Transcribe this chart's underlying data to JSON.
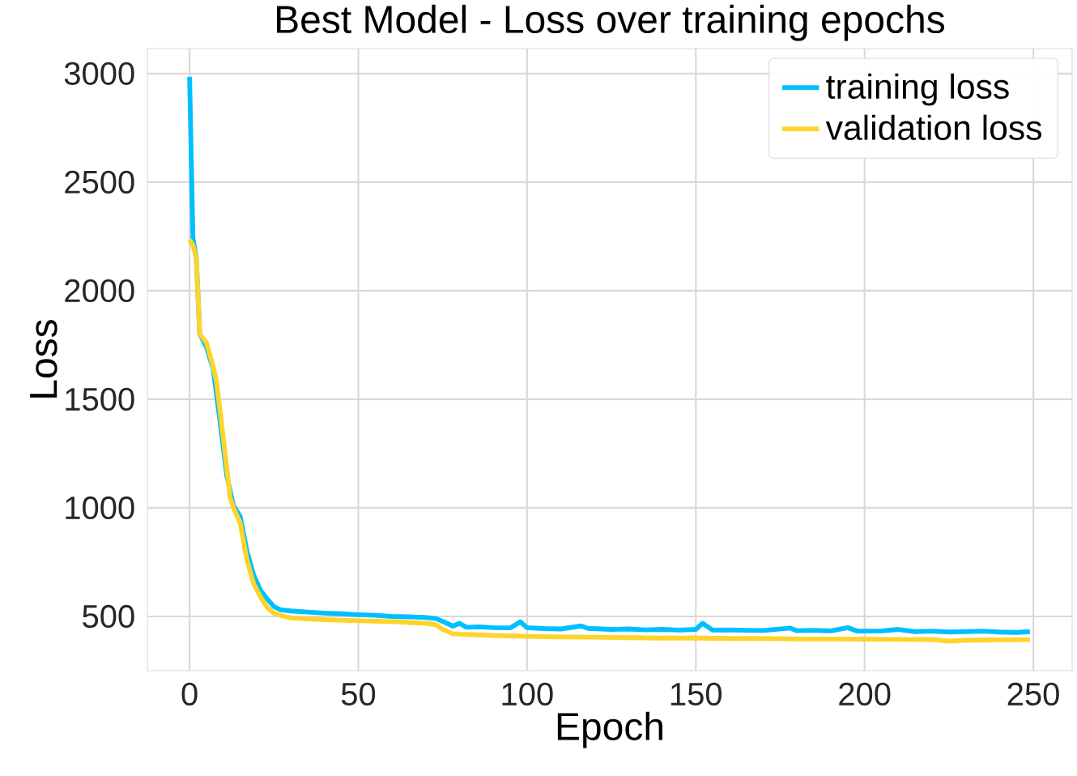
{
  "chart_data": {
    "type": "line",
    "title": "Best Model - Loss over training epochs",
    "xlabel": "Epoch",
    "ylabel": "Loss",
    "xlim": [
      -12.5,
      261.5
    ],
    "ylim": [
      250,
      3115
    ],
    "xticks": [
      0,
      50,
      100,
      150,
      200,
      250
    ],
    "yticks": [
      500,
      1000,
      1500,
      2000,
      2500,
      3000
    ],
    "grid": true,
    "legend": "top right",
    "line_style": "solid",
    "marker": "none",
    "series": [
      {
        "name": "training loss",
        "color": "#00bfff",
        "x": [
          0,
          1,
          2,
          3,
          5,
          7,
          9,
          11,
          13,
          15,
          17,
          19,
          21,
          23,
          25,
          27,
          30,
          35,
          40,
          45,
          50,
          55,
          60,
          65,
          70,
          73,
          76,
          78,
          80,
          82,
          86,
          90,
          95,
          98,
          100,
          105,
          110,
          116,
          118,
          125,
          130,
          135,
          140,
          145,
          150,
          152,
          155,
          160,
          165,
          170,
          178,
          180,
          185,
          190,
          195,
          198,
          205,
          210,
          215,
          220,
          225,
          230,
          235,
          240,
          245,
          249
        ],
        "values": [
          2985,
          2240,
          2150,
          1800,
          1740,
          1640,
          1400,
          1150,
          1010,
          960,
          800,
          690,
          620,
          580,
          545,
          530,
          525,
          520,
          515,
          512,
          508,
          505,
          500,
          498,
          495,
          490,
          470,
          455,
          468,
          450,
          452,
          448,
          447,
          475,
          448,
          444,
          442,
          456,
          445,
          440,
          442,
          438,
          440,
          437,
          440,
          468,
          437,
          438,
          436,
          435,
          446,
          434,
          436,
          433,
          448,
          432,
          433,
          440,
          430,
          432,
          428,
          430,
          432,
          428,
          426,
          430
        ]
      },
      {
        "name": "validation loss",
        "color": "#ffd42a",
        "x": [
          0,
          1,
          2,
          3,
          5,
          7,
          8,
          10,
          12,
          13,
          15,
          17,
          19,
          21,
          23,
          25,
          28,
          30,
          35,
          40,
          50,
          60,
          70,
          73,
          75,
          78,
          80,
          85,
          90,
          100,
          110,
          120,
          130,
          140,
          150,
          160,
          170,
          180,
          190,
          200,
          210,
          220,
          225,
          230,
          240,
          249
        ],
        "values": [
          2234,
          2210,
          2147,
          1800,
          1760,
          1650,
          1580,
          1320,
          1050,
          1000,
          930,
          760,
          650,
          590,
          540,
          515,
          500,
          493,
          488,
          485,
          480,
          476,
          468,
          462,
          440,
          420,
          418,
          415,
          412,
          408,
          405,
          404,
          402,
          400,
          400,
          398,
          398,
          396,
          396,
          395,
          394,
          393,
          386,
          390,
          392,
          393
        ]
      }
    ]
  }
}
